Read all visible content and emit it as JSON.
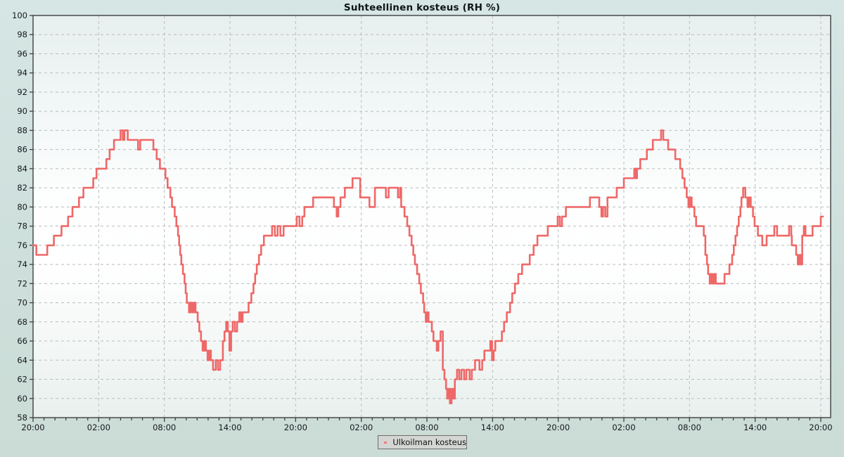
{
  "chart_data": {
    "type": "line",
    "title": "Suhteellinen kosteus (RH %)",
    "legend_position": "bottom-center",
    "grid": "dashed",
    "x_axis": {
      "unit": "time",
      "hours_span": 72.9,
      "major_tick_every_hours": 6,
      "minor_tick_every_hours": 1,
      "tick_labels": [
        "20:00",
        "02:00",
        "08:00",
        "14:00",
        "20:00",
        "02:00",
        "08:00",
        "14:00",
        "20:00",
        "02:00",
        "08:00",
        "14:00",
        "20:00"
      ]
    },
    "y_axis": {
      "range": [
        58,
        100
      ],
      "tick_step": 2,
      "tick_labels": [
        "58",
        "60",
        "62",
        "64",
        "66",
        "68",
        "70",
        "72",
        "74",
        "76",
        "78",
        "80",
        "82",
        "84",
        "86",
        "88",
        "90",
        "92",
        "94",
        "96",
        "98",
        "100"
      ]
    },
    "series": [
      {
        "name": "Ulkoilman kosteus",
        "color": "#ef6868",
        "style": "step",
        "points": [
          [
            0,
            76
          ],
          [
            0.3,
            75
          ],
          [
            1.3,
            76
          ],
          [
            1.9,
            77
          ],
          [
            2.6,
            78
          ],
          [
            3.2,
            79
          ],
          [
            3.6,
            80
          ],
          [
            4.2,
            81
          ],
          [
            4.6,
            82
          ],
          [
            5.5,
            83
          ],
          [
            5.8,
            84
          ],
          [
            6.7,
            85
          ],
          [
            7.0,
            86
          ],
          [
            7.4,
            87
          ],
          [
            8.0,
            88
          ],
          [
            8.2,
            87
          ],
          [
            8.35,
            88
          ],
          [
            8.65,
            87
          ],
          [
            9.6,
            86
          ],
          [
            9.8,
            87
          ],
          [
            11.0,
            86
          ],
          [
            11.3,
            85
          ],
          [
            11.6,
            84
          ],
          [
            12.1,
            83
          ],
          [
            12.3,
            82
          ],
          [
            12.55,
            81
          ],
          [
            12.7,
            80
          ],
          [
            12.95,
            79
          ],
          [
            13.1,
            78
          ],
          [
            13.25,
            77
          ],
          [
            13.35,
            76
          ],
          [
            13.45,
            75
          ],
          [
            13.55,
            74
          ],
          [
            13.7,
            73
          ],
          [
            13.85,
            72
          ],
          [
            13.95,
            71
          ],
          [
            14.05,
            70
          ],
          [
            14.25,
            69
          ],
          [
            14.4,
            70
          ],
          [
            14.55,
            69
          ],
          [
            14.7,
            70
          ],
          [
            14.85,
            69
          ],
          [
            15.05,
            68
          ],
          [
            15.2,
            67
          ],
          [
            15.35,
            66
          ],
          [
            15.5,
            65
          ],
          [
            15.65,
            66
          ],
          [
            15.8,
            65
          ],
          [
            15.95,
            64
          ],
          [
            16.1,
            65
          ],
          [
            16.25,
            64
          ],
          [
            16.45,
            63
          ],
          [
            16.7,
            64
          ],
          [
            16.9,
            63
          ],
          [
            17.1,
            64
          ],
          [
            17.35,
            66
          ],
          [
            17.5,
            67
          ],
          [
            17.65,
            68
          ],
          [
            17.8,
            67
          ],
          [
            17.95,
            65
          ],
          [
            18.1,
            67
          ],
          [
            18.25,
            68
          ],
          [
            18.45,
            67
          ],
          [
            18.65,
            68
          ],
          [
            18.85,
            69
          ],
          [
            19.0,
            68
          ],
          [
            19.15,
            69
          ],
          [
            19.7,
            70
          ],
          [
            19.95,
            71
          ],
          [
            20.15,
            72
          ],
          [
            20.3,
            73
          ],
          [
            20.45,
            74
          ],
          [
            20.65,
            75
          ],
          [
            20.85,
            76
          ],
          [
            21.1,
            77
          ],
          [
            21.85,
            78
          ],
          [
            22.1,
            77
          ],
          [
            22.35,
            78
          ],
          [
            22.6,
            77
          ],
          [
            22.9,
            78
          ],
          [
            24.1,
            79
          ],
          [
            24.35,
            78
          ],
          [
            24.6,
            79
          ],
          [
            24.8,
            80
          ],
          [
            25.6,
            81
          ],
          [
            27.5,
            80
          ],
          [
            27.75,
            79
          ],
          [
            27.9,
            80
          ],
          [
            28.1,
            81
          ],
          [
            28.5,
            82
          ],
          [
            29.2,
            83
          ],
          [
            29.9,
            81
          ],
          [
            30.75,
            80
          ],
          [
            31.25,
            82
          ],
          [
            32.25,
            81
          ],
          [
            32.5,
            82
          ],
          [
            33.35,
            81
          ],
          [
            33.55,
            82
          ],
          [
            33.65,
            80
          ],
          [
            33.95,
            79
          ],
          [
            34.2,
            78
          ],
          [
            34.4,
            77
          ],
          [
            34.6,
            76
          ],
          [
            34.75,
            75
          ],
          [
            34.9,
            74
          ],
          [
            35.1,
            73
          ],
          [
            35.3,
            72
          ],
          [
            35.45,
            71
          ],
          [
            35.65,
            70
          ],
          [
            35.75,
            69
          ],
          [
            35.9,
            68
          ],
          [
            36.0,
            69
          ],
          [
            36.15,
            68
          ],
          [
            36.45,
            67
          ],
          [
            36.6,
            66
          ],
          [
            36.9,
            65
          ],
          [
            37.05,
            66
          ],
          [
            37.25,
            67
          ],
          [
            37.45,
            63
          ],
          [
            37.6,
            62
          ],
          [
            37.75,
            61
          ],
          [
            37.85,
            60
          ],
          [
            37.95,
            61
          ],
          [
            38.1,
            59.5
          ],
          [
            38.25,
            61
          ],
          [
            38.4,
            60
          ],
          [
            38.55,
            62
          ],
          [
            38.75,
            63
          ],
          [
            38.95,
            62
          ],
          [
            39.15,
            63
          ],
          [
            39.4,
            62
          ],
          [
            39.6,
            63
          ],
          [
            39.9,
            62
          ],
          [
            40.1,
            63
          ],
          [
            40.4,
            64
          ],
          [
            40.8,
            63
          ],
          [
            41.05,
            64
          ],
          [
            41.25,
            65
          ],
          [
            41.8,
            66
          ],
          [
            41.95,
            64
          ],
          [
            42.1,
            65
          ],
          [
            42.25,
            66
          ],
          [
            42.85,
            67
          ],
          [
            43.05,
            68
          ],
          [
            43.3,
            69
          ],
          [
            43.6,
            70
          ],
          [
            43.8,
            71
          ],
          [
            44.05,
            72
          ],
          [
            44.35,
            73
          ],
          [
            44.7,
            74
          ],
          [
            45.4,
            75
          ],
          [
            45.75,
            76
          ],
          [
            46.1,
            77
          ],
          [
            47.05,
            78
          ],
          [
            47.95,
            79
          ],
          [
            48.15,
            78
          ],
          [
            48.35,
            79
          ],
          [
            48.7,
            80
          ],
          [
            50.9,
            81
          ],
          [
            51.75,
            80
          ],
          [
            51.95,
            79
          ],
          [
            52.1,
            80
          ],
          [
            52.3,
            79
          ],
          [
            52.5,
            81
          ],
          [
            53.35,
            82
          ],
          [
            54.0,
            83
          ],
          [
            54.95,
            84
          ],
          [
            55.1,
            83
          ],
          [
            55.2,
            84
          ],
          [
            55.5,
            85
          ],
          [
            56.1,
            86
          ],
          [
            56.65,
            87
          ],
          [
            57.4,
            88
          ],
          [
            57.6,
            87
          ],
          [
            58.05,
            86
          ],
          [
            58.7,
            85
          ],
          [
            59.15,
            84
          ],
          [
            59.35,
            83
          ],
          [
            59.55,
            82
          ],
          [
            59.75,
            81
          ],
          [
            59.9,
            80
          ],
          [
            60.05,
            81
          ],
          [
            60.2,
            80
          ],
          [
            60.45,
            79
          ],
          [
            60.6,
            78
          ],
          [
            61.3,
            77
          ],
          [
            61.45,
            75
          ],
          [
            61.6,
            74
          ],
          [
            61.7,
            73
          ],
          [
            61.85,
            72
          ],
          [
            61.95,
            73
          ],
          [
            62.1,
            72
          ],
          [
            62.25,
            73
          ],
          [
            62.4,
            72
          ],
          [
            63.2,
            73
          ],
          [
            63.65,
            74
          ],
          [
            63.9,
            75
          ],
          [
            64.05,
            76
          ],
          [
            64.2,
            77
          ],
          [
            64.35,
            78
          ],
          [
            64.5,
            79
          ],
          [
            64.65,
            80
          ],
          [
            64.75,
            81
          ],
          [
            64.9,
            82
          ],
          [
            65.1,
            81
          ],
          [
            65.3,
            80
          ],
          [
            65.45,
            81
          ],
          [
            65.6,
            80
          ],
          [
            65.8,
            79
          ],
          [
            65.95,
            78
          ],
          [
            66.25,
            77
          ],
          [
            66.65,
            76
          ],
          [
            67.05,
            77
          ],
          [
            67.75,
            78
          ],
          [
            68.0,
            77
          ],
          [
            69.1,
            78
          ],
          [
            69.3,
            77
          ],
          [
            69.35,
            76
          ],
          [
            69.75,
            75
          ],
          [
            69.9,
            74
          ],
          [
            70.05,
            75
          ],
          [
            70.15,
            74
          ],
          [
            70.3,
            77
          ],
          [
            70.45,
            78
          ],
          [
            70.6,
            77
          ],
          [
            71.25,
            78
          ],
          [
            72.0,
            79
          ],
          [
            72.2,
            79
          ]
        ]
      }
    ],
    "colors": {
      "line": "#ef6868",
      "legend_line": "#ef7d7d",
      "grid": "#b9bdbc",
      "axis": "#3c4042",
      "label_text": "#14181b",
      "legend_bg": "#d4d6d4",
      "legend_border": "#6e6e6e",
      "page_bg_top": "#d6e6e4",
      "page_bg_bottom": "#cbdcd6",
      "plot_bg_top": "#e7efef",
      "plot_bg_mid": "#fdfefe",
      "plot_bg_bottom": "#e9f0ee"
    }
  }
}
